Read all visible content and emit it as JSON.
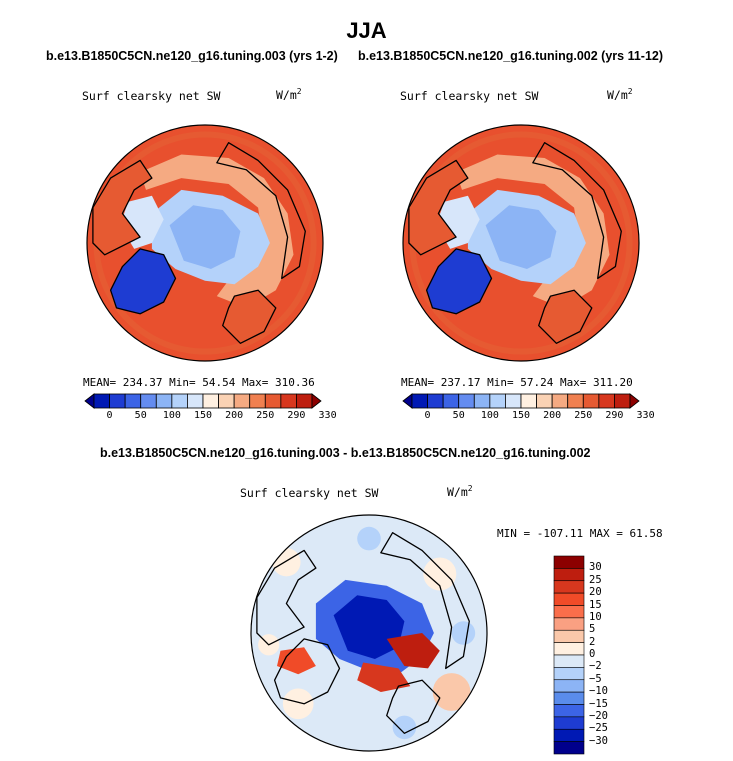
{
  "page": {
    "season_title": "JJA"
  },
  "panels": [
    {
      "case_title": "b.e13.B1850C5CN.ne120_g16.tuning.003 (yrs 1-2)",
      "var_label": "Surf clearsky net SW",
      "units": "W/m",
      "units_exp": "2",
      "stats": "MEAN= 234.37   Min=  54.54   Max= 310.36"
    },
    {
      "case_title": "b.e13.B1850C5CN.ne120_g16.tuning.002 (yrs 11-12)",
      "var_label": "Surf clearsky net SW",
      "units": "W/m",
      "units_exp": "2",
      "stats": "MEAN= 237.17   Min=  57.24   Max= 311.20"
    }
  ],
  "diff_panel": {
    "case_title": "b.e13.B1850C5CN.ne120_g16.tuning.003 - b.e13.B1850C5CN.ne120_g16.tuning.002",
    "var_label": "Surf clearsky net SW",
    "units": "W/m",
    "units_exp": "2",
    "stats": "MIN = -107.11 MAX =  61.58"
  },
  "chart_data": [
    {
      "type": "heatmap",
      "projection": "north-polar-stereographic",
      "title": "Surf clearsky net SW",
      "units": "W/m^2",
      "stats": {
        "mean": 234.37,
        "min": 54.54,
        "max": 310.36
      },
      "colorbar": {
        "orientation": "horizontal",
        "tick_labels": [
          "0",
          "50",
          "100",
          "150",
          "200",
          "250",
          "290",
          "330"
        ],
        "colors": [
          "#00008c",
          "#0019b4",
          "#1e3cd2",
          "#3c64e6",
          "#648cf0",
          "#8cb4f5",
          "#b4d2fa",
          "#d7e6fa",
          "#fff0e1",
          "#fad2b4",
          "#f5aa82",
          "#f08050",
          "#e65a32",
          "#d7371e",
          "#be1e0f",
          "#8c0000"
        ]
      }
    },
    {
      "type": "heatmap",
      "projection": "north-polar-stereographic",
      "title": "Surf clearsky net SW",
      "units": "W/m^2",
      "stats": {
        "mean": 237.17,
        "min": 57.24,
        "max": 311.2
      },
      "colorbar": {
        "orientation": "horizontal",
        "tick_labels": [
          "0",
          "50",
          "100",
          "150",
          "200",
          "250",
          "290",
          "330"
        ],
        "colors": [
          "#00008c",
          "#0019b4",
          "#1e3cd2",
          "#3c64e6",
          "#648cf0",
          "#8cb4f5",
          "#b4d2fa",
          "#d7e6fa",
          "#fff0e1",
          "#fad2b4",
          "#f5aa82",
          "#f08050",
          "#e65a32",
          "#d7371e",
          "#be1e0f",
          "#8c0000"
        ]
      }
    },
    {
      "type": "heatmap",
      "projection": "north-polar-stereographic",
      "title": "Surf clearsky net SW",
      "units": "W/m^2",
      "stats": {
        "min": -107.11,
        "max": 61.58
      },
      "colorbar": {
        "orientation": "vertical",
        "tick_labels": [
          "30",
          "25",
          "20",
          "15",
          "10",
          "5",
          "2",
          "0",
          "−2",
          "−5",
          "−10",
          "−15",
          "−20",
          "−25",
          "−30"
        ],
        "colors": [
          "#8c0000",
          "#be1e0f",
          "#d7371e",
          "#f04b28",
          "#fa6e4b",
          "#faa082",
          "#fac8aa",
          "#fff0e1",
          "#dce9f7",
          "#b4d2fa",
          "#8cb4f5",
          "#5a8ceb",
          "#3c64e6",
          "#1e3cd2",
          "#0019b4",
          "#00008c"
        ]
      }
    }
  ]
}
